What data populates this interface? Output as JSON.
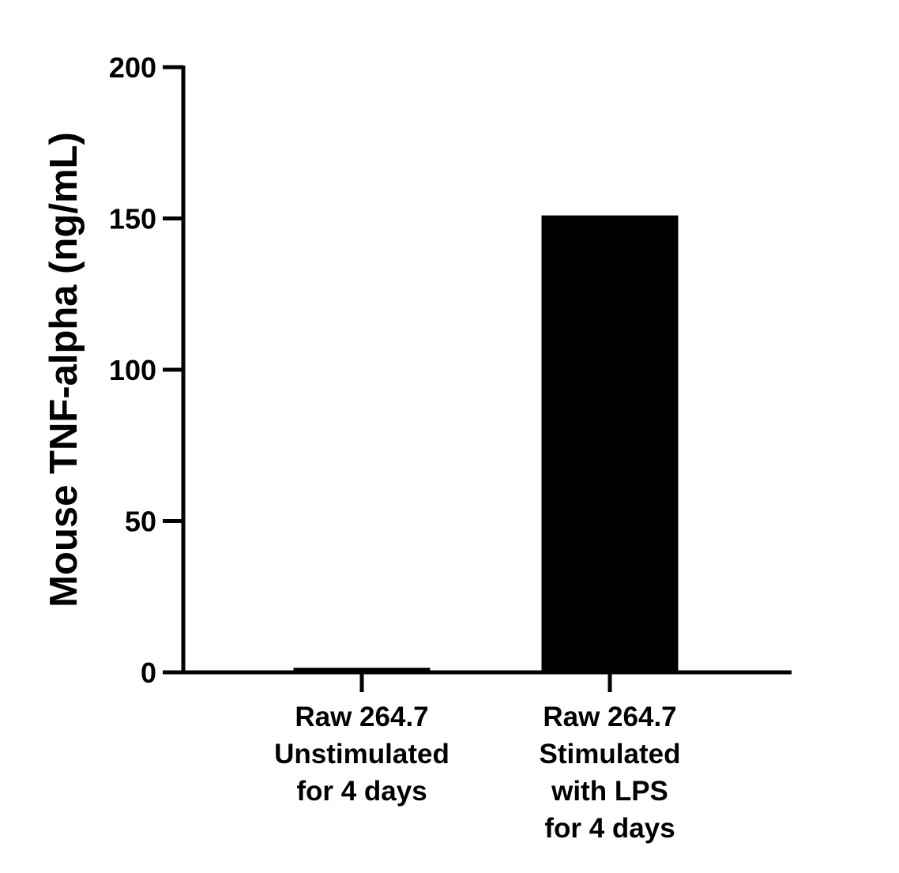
{
  "chart_data": {
    "type": "bar",
    "title": "",
    "xlabel": "",
    "ylabel": "Mouse TNF-alpha (ng/mL)",
    "ylim": [
      0,
      200
    ],
    "yticks": [
      0,
      50,
      100,
      150,
      200
    ],
    "grid": false,
    "legend": null,
    "categories": [
      [
        "Raw 264.7",
        "Unstimulated",
        "for 4 days"
      ],
      [
        "Raw 264.7",
        "Stimulated",
        "with LPS",
        "for 4 days"
      ]
    ],
    "values": [
      1.5,
      151
    ],
    "bar_color": "#000000"
  }
}
